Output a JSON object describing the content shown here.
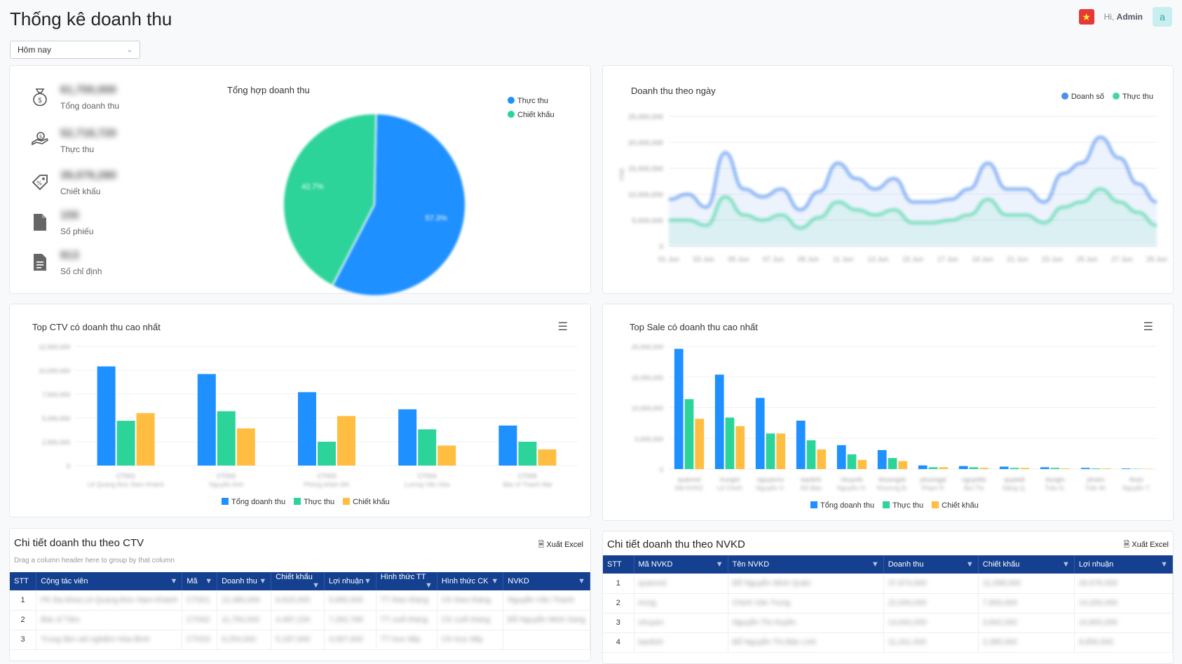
{
  "page": {
    "title": "Thống kê doanh thu"
  },
  "header": {
    "greeting": "Hi,",
    "user": "Admin",
    "avatar_letter": "a",
    "flag_icon": "vietnam-flag-icon"
  },
  "filter": {
    "period": "Hôm nay"
  },
  "stats": [
    {
      "icon": "money-bag-icon",
      "value": "61,700,000",
      "label": "Tổng doanh thu"
    },
    {
      "icon": "hand-money-icon",
      "value": "52,718,720",
      "label": "Thực thu"
    },
    {
      "icon": "discount-tag-icon",
      "value": "39,079,280",
      "label": "Chiết khấu"
    },
    {
      "icon": "document-icon",
      "value": "155",
      "label": "Số phiếu"
    },
    {
      "icon": "document-lines-icon",
      "value": "813",
      "label": "Số chỉ định"
    }
  ],
  "pie": {
    "title": "Tổng hợp doanh thu",
    "legend": [
      "Thực thu",
      "Chiết khấu"
    ],
    "colors": [
      "#1e90ff",
      "#2dd49a"
    ],
    "labels": [
      "57.3%",
      "42.7%"
    ],
    "chart_data": {
      "type": "pie",
      "slices": [
        {
          "name": "Thực thu",
          "value": 57.3
        },
        {
          "name": "Chiết khấu",
          "value": 42.7
        }
      ]
    }
  },
  "line": {
    "title": "Doanh thu theo ngày",
    "legend": [
      "Doanh số",
      "Thực thu"
    ],
    "colors": [
      "#4d8ef0",
      "#45d6a0"
    ],
    "yticks": [
      "25,000,000",
      "20,000,000",
      "15,000,000",
      "10,000,000",
      "5,000,000",
      "0"
    ],
    "xticks": [
      "01 Jun",
      "03 Jun",
      "05 Jun",
      "07 Jun",
      "09 Jun",
      "11 Jun",
      "13 Jun",
      "15 Jun",
      "17 Jun",
      "19 Jun",
      "21 Jun",
      "23 Jun",
      "25 Jun",
      "27 Jun",
      "29 Jun"
    ],
    "chart_data": {
      "type": "line",
      "series": [
        {
          "name": "Doanh số",
          "values": [
            9,
            10,
            7.5,
            18,
            11,
            9.5,
            11,
            7,
            10.5,
            16,
            13,
            11,
            13,
            8.5,
            8.5,
            9,
            11,
            16,
            11,
            11,
            8.5,
            14,
            16,
            21,
            17,
            12,
            8.5
          ]
        },
        {
          "name": "Thực thu",
          "values": [
            5,
            5,
            4,
            9.5,
            6,
            5,
            6,
            3.5,
            5.5,
            8.5,
            7,
            6,
            7,
            4.5,
            4.5,
            5,
            6,
            9,
            6,
            6,
            4.5,
            7.5,
            8.5,
            11,
            8.5,
            6.5,
            4
          ]
        }
      ],
      "ylim": [
        0,
        25000000
      ]
    }
  },
  "ctv_chart": {
    "title": "Top CTV có doanh thu cao nhất",
    "legend": [
      "Tổng doanh thu",
      "Thực thu",
      "Chiết khấu"
    ],
    "colors": [
      "#1e90ff",
      "#2dd49a",
      "#ffbe42"
    ],
    "yticks": [
      "12,500,000",
      "10,000,000",
      "7,500,000",
      "5,000,000",
      "2,500,000",
      "0"
    ],
    "categories": [
      "CT001",
      "CT002",
      "CT003",
      "CT004",
      "CT005"
    ],
    "subcategories": [
      "Lê Quang Đức Nam Khánh",
      "Nguyễn Anh",
      "Phòng khám ĐK",
      "Lương Văn Hòa",
      "Bác sĩ Thanh Mai"
    ],
    "chart_data": {
      "type": "bar",
      "categories": [
        "CT001",
        "CT002",
        "CT003",
        "CT004",
        "CT005"
      ],
      "series": [
        {
          "name": "Tổng doanh thu",
          "values": [
            10.4,
            9.6,
            7.7,
            5.9,
            4.2
          ]
        },
        {
          "name": "Thực thu",
          "values": [
            4.7,
            5.7,
            2.5,
            3.8,
            2.5
          ]
        },
        {
          "name": "Chiết khấu",
          "values": [
            5.5,
            3.9,
            5.2,
            2.1,
            1.7
          ]
        }
      ],
      "ylim": [
        0,
        12.5
      ]
    }
  },
  "sale_chart": {
    "title": "Top Sale có doanh thu cao nhất",
    "legend": [
      "Tổng doanh thu",
      "Thực thu",
      "Chiết khấu"
    ],
    "colors": [
      "#1e90ff",
      "#2dd49a",
      "#ffbe42"
    ],
    "yticks": [
      "20,000,000",
      "15,000,000",
      "10,000,000",
      "5,000,000",
      "0"
    ],
    "categories": [
      "quanmd",
      "trungnt",
      "nguyennv",
      "baolinh",
      "nhuynth",
      "khuongdv",
      "phuongpt",
      "nguyetbt",
      "quyetdt",
      "dungtn",
      "phutm",
      "thutv"
    ],
    "subcategories": [
      "Mã NVKD",
      "Lê Chinh",
      "Nguyễn V.",
      "Đỗ Bảo",
      "Nguyễn H.",
      "Khương Đ.",
      "Phạm P.",
      "Bùi Thị",
      "Đặng Q.",
      "Trần D.",
      "Trần M.",
      "Nguyễn T."
    ],
    "chart_data": {
      "type": "bar",
      "categories": [
        "quanmd",
        "trungnt",
        "nguyennv",
        "baolinh",
        "nhuynth",
        "khuongdv",
        "phuongpt",
        "nguyetbt",
        "quyetdt",
        "dungtn",
        "phutm",
        "thutv"
      ],
      "series": [
        {
          "name": "Tổng doanh thu",
          "values": [
            19.6,
            15.4,
            11.6,
            7.9,
            3.9,
            3.1,
            0.6,
            0.5,
            0.4,
            0.3,
            0.2,
            0.1
          ]
        },
        {
          "name": "Thực thu",
          "values": [
            11.4,
            8.4,
            5.8,
            4.7,
            2.4,
            1.8,
            0.3,
            0.3,
            0.2,
            0.2,
            0.1,
            0.05
          ]
        },
        {
          "name": "Chiết khấu",
          "values": [
            8.2,
            7.0,
            5.8,
            3.2,
            1.5,
            1.3,
            0.3,
            0.2,
            0.2,
            0.1,
            0.1,
            0.05
          ]
        }
      ],
      "ylim": [
        0,
        20
      ]
    }
  },
  "ctv_table": {
    "title": "Chi tiết doanh thu theo CTV",
    "export_label": "Xuất Excel",
    "group_hint": "Drag a column header here to group by that column",
    "columns": [
      "STT",
      "Cộng tác viên",
      "Mã",
      "Doanh thu",
      "Chiết khấu",
      "Lợi nhuận",
      "Hình thức TT",
      "Hình thức CK",
      "NVKD"
    ],
    "rows": [
      [
        "1",
        "PK Đa khoa Lê Quang Đức Nam Khánh",
        "CT001",
        "12,480,000",
        "6,815,000",
        "5,665,000",
        "TT theo tháng",
        "CK theo tháng",
        "Nguyễn Văn Thanh"
      ],
      [
        "2",
        "Bác sĩ Tâm",
        "CT002",
        "11,750,000",
        "4,487,234",
        "7,262,766",
        "TT cuối tháng",
        "CK cuối tháng",
        "Đỗ Nguyễn Minh Sang"
      ],
      [
        "3",
        "Trung tâm xét nghiệm Hòa Bình",
        "CT003",
        "9,254,000",
        "5,187,000",
        "4,067,000",
        "TT trực tiếp",
        "CK trực tiếp",
        ""
      ]
    ]
  },
  "nvkd_table": {
    "title": "Chi tiết doanh thu theo NVKD",
    "export_label": "Xuất Excel",
    "columns": [
      "STT",
      "Mã NVKD",
      "Tên NVKD",
      "Doanh thu",
      "Chiết khấu",
      "Lợi nhuận"
    ],
    "rows": [
      [
        "1",
        "quanmd",
        "Đỗ Nguyễn Minh Quân",
        "37,674,000",
        "11,098,000",
        "26,576,000"
      ],
      [
        "2",
        "trung",
        "Chinh Văn Trung",
        "22,000,000",
        "7,800,000",
        "14,200,000"
      ],
      [
        "3",
        "nhuyen",
        "Nguyễn Thị Huyền",
        "14,642,000",
        "3,842,000",
        "10,800,000"
      ],
      [
        "4",
        "baolinh",
        "Đỗ Nguyễn Thị Bảo Linh",
        "11,241,000",
        "2,385,000",
        "8,856,000"
      ]
    ]
  }
}
